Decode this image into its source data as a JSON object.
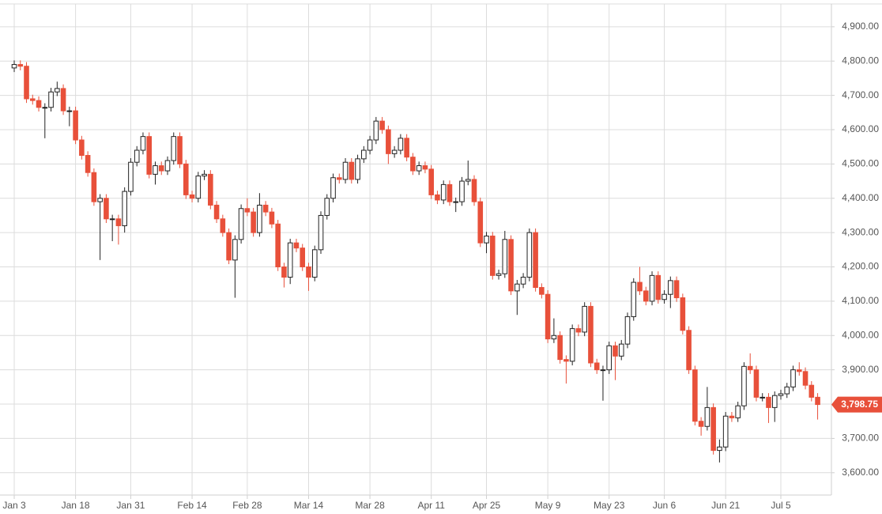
{
  "chart_data": {
    "type": "candlestick",
    "up_color": "#ffffff",
    "down_color": "#e8503a",
    "outline_color": "#222222",
    "grid": true,
    "ylim": [
      3535,
      4978
    ],
    "yticks": [
      {
        "value": 3600,
        "label": "3,600.00"
      },
      {
        "value": 3700,
        "label": "3,700.00"
      },
      {
        "value": 3800,
        "label": "3,800.00"
      },
      {
        "value": 3900,
        "label": "3,900.00"
      },
      {
        "value": 4000,
        "label": "4,000.00"
      },
      {
        "value": 4100,
        "label": "4,100.00"
      },
      {
        "value": 4200,
        "label": "4,200.00"
      },
      {
        "value": 4300,
        "label": "4,300.00"
      },
      {
        "value": 4400,
        "label": "4,400.00"
      },
      {
        "value": 4500,
        "label": "4,500.00"
      },
      {
        "value": 4600,
        "label": "4,600.00"
      },
      {
        "value": 4700,
        "label": "4,700.00"
      },
      {
        "value": 4800,
        "label": "4,800.00"
      },
      {
        "value": 4900,
        "label": "4,900.00"
      }
    ],
    "last_price_label": "3,798.75",
    "categories": [
      "Jan 3",
      null,
      null,
      null,
      null,
      null,
      null,
      null,
      null,
      null,
      "Jan 18",
      null,
      null,
      null,
      null,
      null,
      null,
      null,
      null,
      "Jan 31",
      null,
      null,
      null,
      null,
      null,
      null,
      null,
      null,
      null,
      "Feb 14",
      null,
      null,
      null,
      null,
      null,
      null,
      null,
      null,
      "Feb 28",
      null,
      null,
      null,
      null,
      null,
      null,
      null,
      null,
      null,
      "Mar 14",
      null,
      null,
      null,
      null,
      null,
      null,
      null,
      null,
      null,
      "Mar 28",
      null,
      null,
      null,
      null,
      null,
      null,
      null,
      null,
      null,
      "Apr 11",
      null,
      null,
      null,
      null,
      null,
      null,
      null,
      null,
      "Apr 25",
      null,
      null,
      null,
      null,
      null,
      null,
      null,
      null,
      null,
      "May 9",
      null,
      null,
      null,
      null,
      null,
      null,
      null,
      null,
      null,
      "May 23",
      null,
      null,
      null,
      null,
      null,
      null,
      null,
      null,
      "Jun 6",
      null,
      null,
      null,
      null,
      null,
      null,
      null,
      null,
      null,
      "Jun 21",
      null,
      null,
      null,
      null,
      null,
      null,
      null,
      null,
      "Jul 5",
      null,
      null,
      null,
      null,
      null,
      null
    ],
    "open": [
      4780,
      4790,
      4785,
      4690,
      4685,
      4665,
      4665,
      4710,
      4720,
      4655,
      4655,
      4570,
      4525,
      4475,
      4390,
      4400,
      4340,
      4340,
      4320,
      4420,
      4505,
      4540,
      4580,
      4470,
      4495,
      4480,
      4510,
      4580,
      4500,
      4410,
      4400,
      4465,
      4470,
      4380,
      4340,
      4300,
      4220,
      4280,
      4370,
      4360,
      4300,
      4380,
      4360,
      4325,
      4200,
      4170,
      4270,
      4255,
      4200,
      4170,
      4250,
      4350,
      4400,
      4460,
      4455,
      4505,
      4455,
      4515,
      4540,
      4570,
      4625,
      4600,
      4530,
      4540,
      4575,
      4520,
      4480,
      4495,
      4485,
      4410,
      4395,
      4440,
      4390,
      4390,
      4450,
      4455,
      4390,
      4270,
      4290,
      4175,
      4180,
      4280,
      4130,
      4150,
      4170,
      4300,
      4140,
      4120,
      3990,
      4000,
      3930,
      3925,
      4020,
      4010,
      4085,
      3920,
      3900,
      3900,
      3970,
      3940,
      3975,
      4055,
      4155,
      4130,
      4100,
      4175,
      4105,
      4120,
      4160,
      4110,
      4015,
      3900,
      3750,
      3735,
      3790,
      3665,
      3675,
      3765,
      3760,
      3795,
      3910,
      3900,
      3820,
      3820,
      3790,
      3825,
      3830,
      3850,
      3900,
      3895,
      3855,
      3820
    ],
    "high": [
      4802,
      4802,
      4797,
      4702,
      4697,
      4677,
      4722,
      4740,
      4732,
      4667,
      4667,
      4582,
      4537,
      4487,
      4412,
      4412,
      4352,
      4352,
      4432,
      4517,
      4552,
      4592,
      4592,
      4507,
      4507,
      4522,
      4592,
      4592,
      4512,
      4422,
      4477,
      4482,
      4482,
      4392,
      4352,
      4312,
      4292,
      4382,
      4400,
      4372,
      4415,
      4392,
      4372,
      4337,
      4212,
      4282,
      4282,
      4267,
      4212,
      4262,
      4362,
      4412,
      4472,
      4472,
      4517,
      4517,
      4527,
      4552,
      4582,
      4637,
      4637,
      4612,
      4552,
      4587,
      4587,
      4532,
      4507,
      4507,
      4497,
      4422,
      4452,
      4452,
      4402,
      4462,
      4510,
      4467,
      4402,
      4302,
      4302,
      4192,
      4305,
      4292,
      4162,
      4182,
      4312,
      4312,
      4152,
      4132,
      4050,
      4012,
      3942,
      4032,
      4032,
      4097,
      4097,
      3932,
      3912,
      3982,
      3982,
      3987,
      4067,
      4167,
      4200,
      4142,
      4187,
      4187,
      4132,
      4172,
      4172,
      4122,
      4027,
      3912,
      3762,
      3850,
      3802,
      3697,
      3777,
      3777,
      3807,
      3922,
      3948,
      3912,
      3832,
      3832,
      3837,
      3842,
      3862,
      3912,
      3922,
      3907,
      3867,
      3832
    ],
    "low": [
      4768,
      4773,
      4678,
      4673,
      4653,
      4575,
      4653,
      4698,
      4643,
      4610,
      4558,
      4513,
      4463,
      4378,
      4220,
      4328,
      4275,
      4265,
      4300,
      4408,
      4493,
      4528,
      4458,
      4440,
      4468,
      4468,
      4498,
      4488,
      4398,
      4388,
      4388,
      4453,
      4368,
      4328,
      4288,
      4208,
      4110,
      4268,
      4348,
      4288,
      4288,
      4348,
      4313,
      4188,
      4140,
      4150,
      4243,
      4188,
      4130,
      4158,
      4238,
      4338,
      4388,
      4443,
      4443,
      4443,
      4443,
      4503,
      4528,
      4558,
      4588,
      4500,
      4518,
      4528,
      4508,
      4468,
      4468,
      4473,
      4398,
      4383,
      4383,
      4378,
      4360,
      4378,
      4438,
      4378,
      4258,
      4240,
      4163,
      4163,
      4168,
      4118,
      4060,
      4138,
      4158,
      4128,
      4108,
      3978,
      3978,
      3918,
      3860,
      3913,
      3998,
      3998,
      3908,
      3888,
      3810,
      3888,
      3870,
      3928,
      3963,
      4043,
      4118,
      4088,
      4088,
      4093,
      4093,
      4080,
      4098,
      4003,
      3888,
      3738,
      3708,
      3723,
      3653,
      3630,
      3663,
      3748,
      3748,
      3783,
      3888,
      3808,
      3808,
      3745,
      3748,
      3813,
      3818,
      3838,
      3883,
      3843,
      3808,
      3755
    ],
    "close": [
      4790,
      4785,
      4690,
      4685,
      4665,
      4665,
      4710,
      4720,
      4655,
      4655,
      4570,
      4525,
      4475,
      4390,
      4400,
      4340,
      4340,
      4320,
      4420,
      4505,
      4540,
      4580,
      4470,
      4495,
      4480,
      4510,
      4580,
      4500,
      4410,
      4400,
      4465,
      4470,
      4380,
      4340,
      4300,
      4220,
      4280,
      4370,
      4360,
      4300,
      4380,
      4360,
      4325,
      4200,
      4170,
      4270,
      4255,
      4200,
      4170,
      4250,
      4350,
      4400,
      4460,
      4455,
      4505,
      4455,
      4515,
      4540,
      4570,
      4625,
      4600,
      4530,
      4540,
      4575,
      4520,
      4480,
      4495,
      4485,
      4410,
      4395,
      4440,
      4390,
      4390,
      4450,
      4455,
      4390,
      4270,
      4290,
      4175,
      4180,
      4280,
      4130,
      4150,
      4170,
      4300,
      4140,
      4120,
      3990,
      4000,
      3930,
      3925,
      4020,
      4010,
      4085,
      3920,
      3900,
      3900,
      3970,
      3940,
      3975,
      4055,
      4155,
      4130,
      4100,
      4175,
      4105,
      4120,
      4160,
      4110,
      4015,
      3900,
      3750,
      3735,
      3790,
      3665,
      3675,
      3765,
      3760,
      3795,
      3910,
      3900,
      3820,
      3820,
      3790,
      3825,
      3830,
      3850,
      3900,
      3895,
      3855,
      3820,
      3798.75
    ]
  }
}
